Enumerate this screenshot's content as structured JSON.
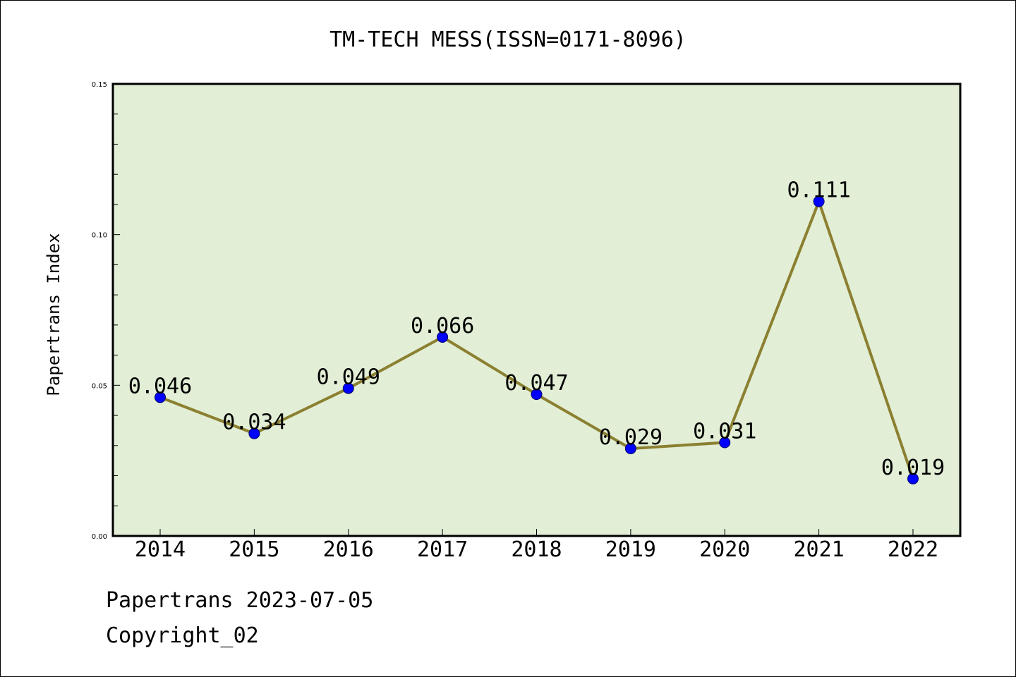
{
  "chart_data": {
    "type": "line",
    "title": "TM-TECH MESS(ISSN=0171-8096)",
    "xlabel": "",
    "ylabel": "Papertrans Index",
    "categories": [
      "2014",
      "2015",
      "2016",
      "2017",
      "2018",
      "2019",
      "2020",
      "2021",
      "2022"
    ],
    "values": [
      0.046,
      0.034,
      0.049,
      0.066,
      0.047,
      0.029,
      0.031,
      0.111,
      0.019
    ],
    "data_labels": [
      "0.046",
      "0.034",
      "0.049",
      "0.066",
      "0.047",
      "0.029",
      "0.031",
      "0.111",
      "0.019"
    ],
    "ylim": [
      0,
      0.15
    ],
    "yticks": [
      0.0,
      0.05,
      0.1,
      0.15
    ],
    "ytick_labels": [
      "0.00",
      "0.05",
      "0.10",
      "0.15"
    ],
    "grid": false,
    "colors": {
      "plot_background": "#e2efd6",
      "line": "#8b8031",
      "marker": "#0000ff"
    }
  },
  "footer": {
    "date_line": "Papertrans 2023-07-05",
    "copyright": "Copyright_02"
  }
}
